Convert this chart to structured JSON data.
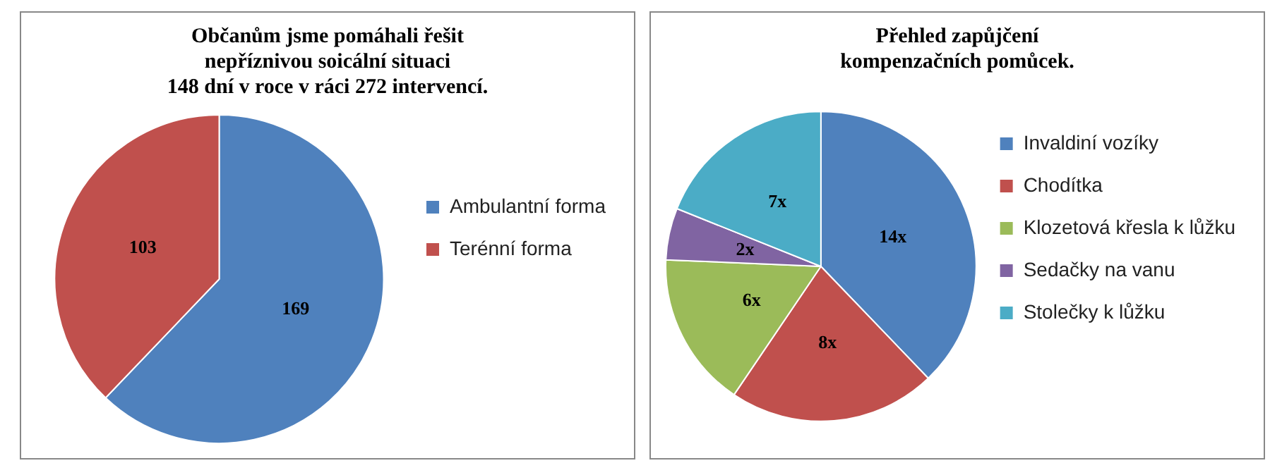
{
  "chart_data": [
    {
      "type": "pie",
      "title": "Občanům jsme pomáhali řešit\nnepříznivou soicální situaci\n148 dní v roce v ráci 272 intervencí.",
      "categories": [
        "Ambulantní forma",
        "Terénní forma"
      ],
      "values": [
        169,
        103
      ],
      "colors": [
        "#4f81bd",
        "#c0504d"
      ],
      "data_labels": true,
      "legend": "right"
    },
    {
      "type": "pie",
      "title": "Přehled zapůjčení\nkompenzačních pomůcek.",
      "categories": [
        "Invaldiní vozíky",
        "Chodítka",
        "Klozetová křesla k lůžku",
        "Sedačky na vanu",
        "Stolečky k lůžku"
      ],
      "values": [
        14,
        8,
        6,
        2,
        7
      ],
      "value_labels": [
        "14x",
        "8x",
        "6x",
        "2x",
        "7x"
      ],
      "colors": [
        "#4f81bd",
        "#c0504d",
        "#9bbb59",
        "#8064a2",
        "#4bacc6"
      ],
      "legend": "right"
    }
  ]
}
